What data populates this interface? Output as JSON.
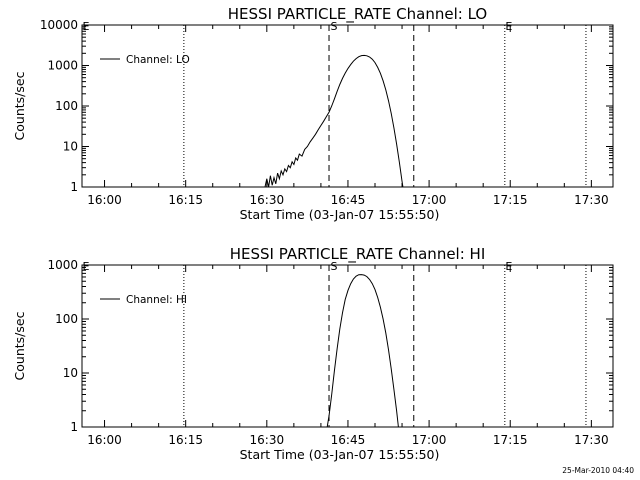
{
  "footer": {
    "timestamp": "25-Mar-2010 04:40"
  },
  "chart_data": [
    {
      "type": "line",
      "title": "HESSI PARTICLE_RATE Channel: LO",
      "xlabel": "Start Time (03-Jan-07 15:55:50)",
      "ylabel": "Counts/sec",
      "yscale": "log",
      "xlim": [
        "15:55:50",
        "17:34:00"
      ],
      "ylim": [
        1,
        10000
      ],
      "x_ticks": [
        "16:00",
        "16:15",
        "16:30",
        "16:45",
        "17:00",
        "17:15",
        "17:30"
      ],
      "y_ticks": [
        "1",
        "10",
        "100",
        "1000",
        "10000"
      ],
      "legend": {
        "entries": [
          "Channel: LO"
        ],
        "position": "top-left"
      },
      "markers": {
        "start_label": "S",
        "end_label": "E"
      },
      "dashed_lines": [
        "16:41:30",
        "16:57:10"
      ],
      "dotted_lines": [
        "16:14:40",
        "17:14:00",
        "17:29:00"
      ],
      "series": [
        {
          "name": "Channel: LO",
          "points": [
            [
              "16:29:40",
              1
            ],
            [
              "16:30:00",
              1.6
            ],
            [
              "16:30:20",
              1
            ],
            [
              "16:30:40",
              1.9
            ],
            [
              "16:31:00",
              1.1
            ],
            [
              "16:31:20",
              1.7
            ],
            [
              "16:31:40",
              1.2
            ],
            [
              "16:32:00",
              2.2
            ],
            [
              "16:32:20",
              1.6
            ],
            [
              "16:32:40",
              2.5
            ],
            [
              "16:33:00",
              2.0
            ],
            [
              "16:33:20",
              2.8
            ],
            [
              "16:33:40",
              2.4
            ],
            [
              "16:34:00",
              3.4
            ],
            [
              "16:34:20",
              3.0
            ],
            [
              "16:34:40",
              4.2
            ],
            [
              "16:35:00",
              3.6
            ],
            [
              "16:35:20",
              5.2
            ],
            [
              "16:35:40",
              4.6
            ],
            [
              "16:36:00",
              6.5
            ],
            [
              "16:36:30",
              5.8
            ],
            [
              "16:37:00",
              8.5
            ],
            [
              "16:37:30",
              10
            ],
            [
              "16:38:00",
              13
            ],
            [
              "16:38:30",
              16
            ],
            [
              "16:39:00",
              20
            ],
            [
              "16:39:30",
              26
            ],
            [
              "16:40:00",
              33
            ],
            [
              "16:40:30",
              42
            ],
            [
              "16:41:00",
              54
            ],
            [
              "16:41:30",
              70
            ],
            [
              "16:42:00",
              100
            ],
            [
              "16:42:30",
              150
            ],
            [
              "16:43:00",
              230
            ],
            [
              "16:43:30",
              340
            ],
            [
              "16:44:00",
              480
            ],
            [
              "16:44:30",
              650
            ],
            [
              "16:45:00",
              850
            ],
            [
              "16:45:30",
              1050
            ],
            [
              "16:46:00",
              1280
            ],
            [
              "16:46:30",
              1480
            ],
            [
              "16:47:00",
              1650
            ],
            [
              "16:47:30",
              1760
            ],
            [
              "16:48:00",
              1780
            ],
            [
              "16:48:30",
              1740
            ],
            [
              "16:49:00",
              1620
            ],
            [
              "16:49:30",
              1430
            ],
            [
              "16:50:00",
              1180
            ],
            [
              "16:50:30",
              900
            ],
            [
              "16:51:00",
              640
            ],
            [
              "16:51:30",
              420
            ],
            [
              "16:52:00",
              250
            ],
            [
              "16:52:30",
              135
            ],
            [
              "16:53:00",
              66
            ],
            [
              "16:53:30",
              29
            ],
            [
              "16:54:00",
              11.5
            ],
            [
              "16:54:30",
              4.2
            ],
            [
              "16:55:00",
              1.4
            ],
            [
              "16:55:10",
              1
            ]
          ]
        }
      ]
    },
    {
      "type": "line",
      "title": "HESSI PARTICLE_RATE Channel: HI",
      "xlabel": "Start Time (03-Jan-07 15:55:50)",
      "ylabel": "Counts/sec",
      "yscale": "log",
      "xlim": [
        "15:55:50",
        "17:34:00"
      ],
      "ylim": [
        1,
        1000
      ],
      "x_ticks": [
        "16:00",
        "16:15",
        "16:30",
        "16:45",
        "17:00",
        "17:15",
        "17:30"
      ],
      "y_ticks": [
        "1",
        "10",
        "100",
        "1000"
      ],
      "legend": {
        "entries": [
          "Channel: HI"
        ],
        "position": "top-left"
      },
      "markers": {
        "start_label": "S",
        "end_label": "E"
      },
      "dashed_lines": [
        "16:41:30",
        "16:57:10"
      ],
      "dotted_lines": [
        "16:14:40",
        "17:14:00",
        "17:29:00"
      ],
      "series": [
        {
          "name": "Channel: HI",
          "points": [
            [
              "16:41:10",
              1
            ],
            [
              "16:41:30",
              1.6
            ],
            [
              "16:42:00",
              4
            ],
            [
              "16:42:30",
              11
            ],
            [
              "16:43:00",
              28
            ],
            [
              "16:43:30",
              65
            ],
            [
              "16:44:00",
              130
            ],
            [
              "16:44:30",
              230
            ],
            [
              "16:45:00",
              340
            ],
            [
              "16:45:30",
              450
            ],
            [
              "16:46:00",
              550
            ],
            [
              "16:46:30",
              620
            ],
            [
              "16:47:00",
              660
            ],
            [
              "16:47:30",
              665
            ],
            [
              "16:48:00",
              650
            ],
            [
              "16:48:30",
              610
            ],
            [
              "16:49:00",
              540
            ],
            [
              "16:49:30",
              450
            ],
            [
              "16:50:00",
              350
            ],
            [
              "16:50:30",
              250
            ],
            [
              "16:51:00",
              165
            ],
            [
              "16:51:30",
              100
            ],
            [
              "16:52:00",
              55
            ],
            [
              "16:52:30",
              27
            ],
            [
              "16:53:00",
              12
            ],
            [
              "16:53:30",
              5
            ],
            [
              "16:54:00",
              2
            ],
            [
              "16:54:20",
              1
            ]
          ]
        }
      ]
    }
  ]
}
